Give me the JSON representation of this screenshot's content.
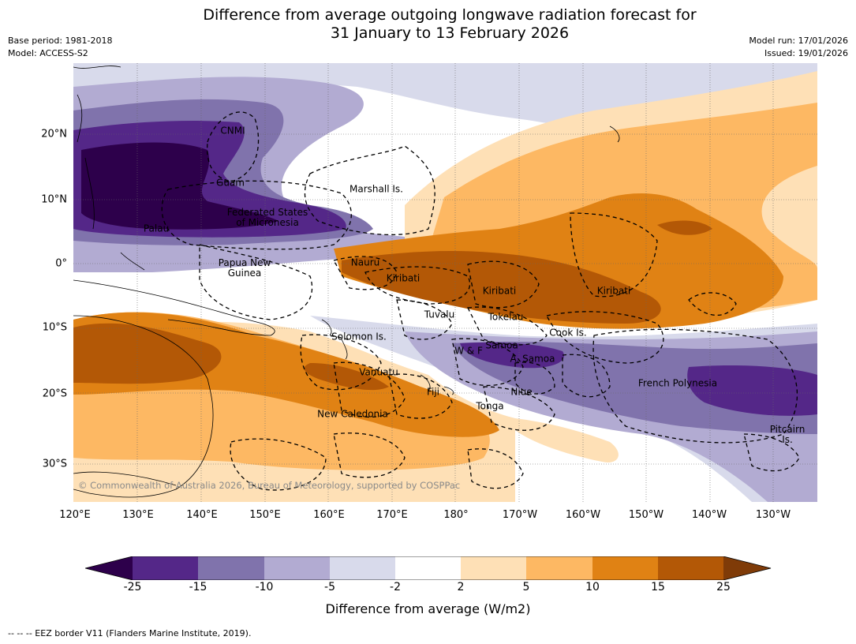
{
  "title_line1": "Difference from average outgoing longwave radiation forecast for",
  "title_line2": "31 January to 13 February 2026",
  "base_period": "Base period: 1981-2018",
  "model": "Model: ACCESS-S2",
  "model_run": "Model run: 17/01/2026",
  "issued": "Issued: 19/01/2026",
  "copyright": "© Commonwealth of Australia 2026, Bureau of Meteorology, supported by COSPPac",
  "lat_labels": [
    "20°N",
    "10°N",
    "0°",
    "10°S",
    "20°S",
    "30°S"
  ],
  "lon_labels": [
    "120°E",
    "130°E",
    "140°E",
    "150°E",
    "160°E",
    "170°E",
    "180°",
    "170°W",
    "160°W",
    "150°W",
    "140°W",
    "130°W"
  ],
  "places": {
    "cnmi": "CNMI",
    "guam": "Guam",
    "marshall": "Marshall Is.",
    "fsm_1": "Federated States",
    "fsm_2": "of Micronesia",
    "palau": "Palau",
    "png_1": "Papua New",
    "png_2": "Guinea",
    "nauru": "Nauru",
    "kiribati_w": "Kiribati",
    "kiribati_c": "Kiribati",
    "kiribati_e": "Kiribati",
    "tuvalu": "Tuvalu",
    "tokelau": "Tokelau",
    "cook": "Cook Is.",
    "solomon": "Solomon Is.",
    "wf": "W & F",
    "samoa": "Samoa",
    "asamoa": "A. Samoa",
    "vanuatu": "Vanuatu",
    "fiji": "Fiji",
    "niue": "Niue",
    "tonga": "Tonga",
    "french_polynesia": "French Polynesia",
    "new_caledonia": "New Caledonia",
    "pitcairn_1": "Pitcairn",
    "pitcairn_2": "Is."
  },
  "colorbar": {
    "label": "Difference from average (W/m2)",
    "ticks": [
      "-25",
      "-15",
      "-10",
      "-5",
      "-2",
      "2",
      "5",
      "10",
      "15",
      "25"
    ],
    "colors": {
      "under": "#2d004b",
      "c_m25_m15": "#542788",
      "c_m15_m10": "#8073ac",
      "c_m10_m5": "#b2abd2",
      "c_m5_m2": "#d8daeb",
      "c_m2_2": "#ffffff",
      "c_2_5": "#fee0b6",
      "c_5_10": "#fdb863",
      "c_10_15": "#e08214",
      "c_15_25": "#b35806",
      "over": "#7f3b08"
    }
  },
  "footnote": "--  --  -- EEZ border V11 (Flanders Marine Institute, 2019)."
}
